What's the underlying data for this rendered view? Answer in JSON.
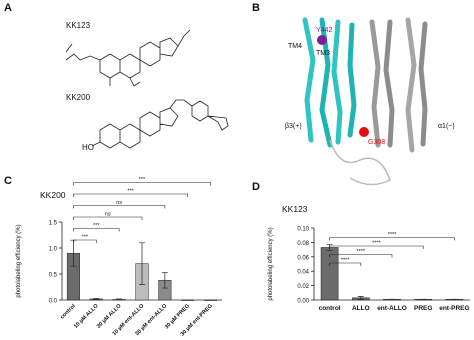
{
  "panels": {
    "a": {
      "letter": "A",
      "labels": [
        "KK123",
        "KK200"
      ]
    },
    "b": {
      "letter": "B",
      "labels": [
        "Y442",
        "TM4",
        "TM3",
        "β3(+)",
        "α1(−)",
        "G308"
      ]
    },
    "c": {
      "letter": "C"
    },
    "d": {
      "letter": "D"
    }
  },
  "chart_data": [
    {
      "type": "bar",
      "title": "KK200",
      "y_label": "photolabeling efficiency (%)",
      "categories": [
        "control",
        "10 µM ALLO",
        "30 µM ALLO",
        "10 µM ent-ALLO",
        "30 µM ent-ALLO",
        "30 µM PREG",
        "30 µM ent-PREG"
      ],
      "values": [
        0.9,
        0.02,
        0.01,
        0.7,
        0.38,
        0.0,
        0.0
      ],
      "errors": [
        0.25,
        0.01,
        0.01,
        0.4,
        0.15,
        0.0,
        0.0
      ],
      "colors": [
        "#6b6b6b",
        "#6b6b6b",
        "#6b6b6b",
        "#bdbdbd",
        "#8a8a8a",
        "#6b6b6b",
        "#6b6b6b"
      ],
      "ylim": [
        0,
        1.5
      ],
      "yticks": [
        {
          "value": 0,
          "label": "0.0"
        },
        {
          "value": 0.5,
          "label": "0.5"
        },
        {
          "value": 1,
          "label": "1.0"
        },
        {
          "value": 1.5,
          "label": "1.5"
        }
      ],
      "comparisons": [
        "***",
        "***",
        "ns",
        "ns",
        "***",
        "***"
      ]
    },
    {
      "type": "bar",
      "title": "KK123",
      "y_label": "photolabeling efficiency (%)",
      "categories": [
        "control",
        "ALLO",
        "ent-ALLO",
        "PREG",
        "ent-PREG"
      ],
      "values": [
        0.073,
        0.003,
        0.001,
        0.001,
        0.001
      ],
      "errors": [
        0.004,
        0.002,
        0.0,
        0.0,
        0.0
      ],
      "colors": [
        "#6b6b6b",
        "#6b6b6b",
        "#6b6b6b",
        "#6b6b6b",
        "#6b6b6b"
      ],
      "ylim": [
        0,
        0.1
      ],
      "yticks": [
        {
          "value": 0,
          "label": "0.00"
        },
        {
          "value": 0.02,
          "label": "0.02"
        },
        {
          "value": 0.04,
          "label": "0.04"
        },
        {
          "value": 0.06,
          "label": "0.06"
        },
        {
          "value": 0.08,
          "label": "0.08"
        },
        {
          "value": 0.1,
          "label": "0.10"
        }
      ],
      "comparisons": [
        "****",
        "****",
        "****",
        "****"
      ]
    }
  ]
}
